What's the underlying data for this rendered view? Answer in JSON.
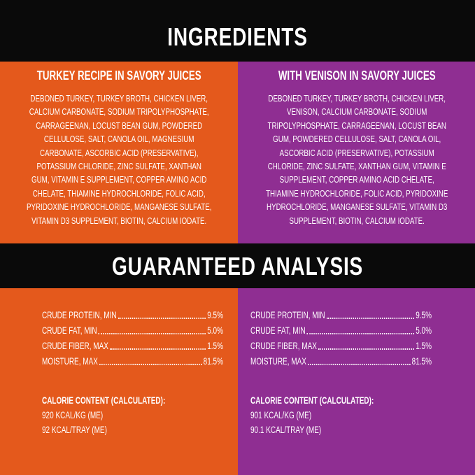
{
  "ingredients": {
    "title": "INGREDIENTS",
    "columns": [
      {
        "title": "TURKEY RECIPE IN SAVORY JUICES",
        "lines": [
          "DEBONED TURKEY, TURKEY BROTH, CHICKEN LIVER,",
          "CALCIUM CARBONATE, SODIUM TRIPOLYPHOSPHATE,",
          "CARRAGEENAN, LOCUST BEAN GUM, POWDERED",
          "CELLULOSE, SALT, CANOLA OIL, MAGNESIUM",
          "CARBONATE, ASCORBIC ACID (PRESERVATIVE),",
          "POTASSIUM CHLORIDE, ZINC SULFATE, XANTHAN",
          "GUM, VITAMIN E SUPPLEMENT, COPPER AMINO ACID",
          "CHELATE, THIAMINE HYDROCHLORIDE, FOLIC ACID,",
          "PYRIDOXINE HYDROCHLORIDE, MANGANESE SULFATE,",
          "VITAMIN D3 SUPPLEMENT, BIOTIN, CALCIUM IODATE."
        ]
      },
      {
        "title": "WITH VENISON IN SAVORY JUICES",
        "lines": [
          "DEBONED TURKEY, TURKEY BROTH, CHICKEN LIVER,",
          "VENISON, CALCIUM CARBONATE, SODIUM",
          "TRIPOLYPHOSPHATE, CARRAGEENAN, LOCUST BEAN",
          "GUM, POWDERED CELLULOSE, SALT, CANOLA OIL,",
          "ASCORBIC ACID (PRESERVATIVE), POTASSIUM",
          "CHLORIDE, ZINC SULFATE, XANTHAN GUM, VITAMIN E",
          "SUPPLEMENT, COPPER AMINO ACID CHELATE,",
          "THIAMINE HYDROCHLORIDE, FOLIC ACID, PYRIDOXINE",
          "HYDROCHLORIDE, MANGANESE SULFATE, VITAMIN D3",
          "SUPPLEMENT, BIOTIN, CALCIUM IODATE."
        ]
      }
    ]
  },
  "analysis": {
    "title": "GUARANTEED ANALYSIS",
    "columns": [
      {
        "rows": [
          {
            "label": "CRUDE PROTEIN, MIN",
            "value": "9.5%"
          },
          {
            "label": "CRUDE FAT, MIN",
            "value": "5.0%"
          },
          {
            "label": "CRUDE FIBER, MAX",
            "value": "1.5%"
          },
          {
            "label": "MOISTURE, MAX",
            "value": "81.5%"
          }
        ],
        "calorie_title": "CALORIE CONTENT (CALCULATED):",
        "calorie_lines": [
          "920 KCAL/KG (ME)",
          "92 KCAL/TRAY (ME)"
        ]
      },
      {
        "rows": [
          {
            "label": "CRUDE PROTEIN, MIN",
            "value": "9.5%"
          },
          {
            "label": "CRUDE FAT, MIN",
            "value": "5.0%"
          },
          {
            "label": "CRUDE FIBER, MAX",
            "value": "1.5%"
          },
          {
            "label": "MOISTURE, MAX",
            "value": "81.5%"
          }
        ],
        "calorie_title": "CALORIE CONTENT (CALCULATED):",
        "calorie_lines": [
          "901 KCAL/KG (ME)",
          "90.1 KCAL/TRAY (ME)"
        ]
      }
    ]
  }
}
